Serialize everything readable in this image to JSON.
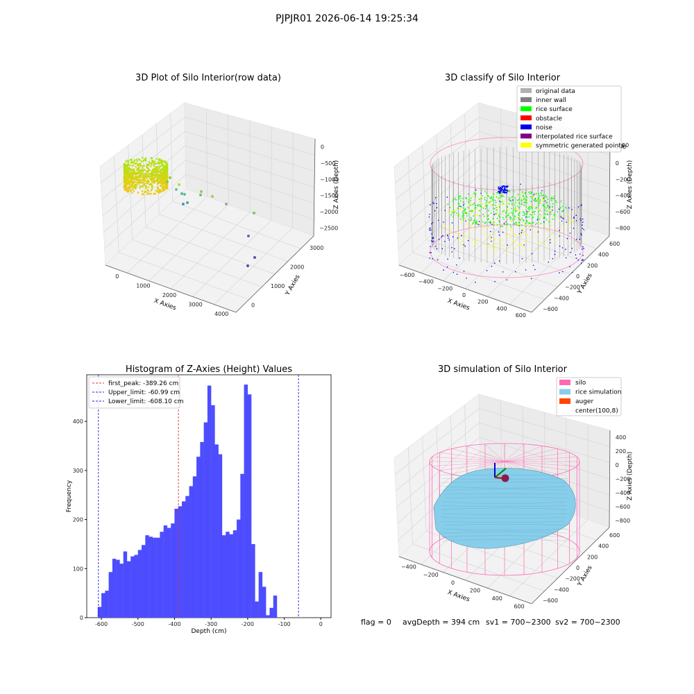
{
  "suptitle": "PJPJR01 2026-06-14 19:25:34",
  "colors": {
    "hist_bar": "#4d4dff",
    "peak_line": "#e03030",
    "limit_line": "#2020cc",
    "silo": "#ff69b4",
    "rice": "#87ceeb",
    "auger": "#ff4500",
    "inner_wall": "#808080",
    "rice_surface": "#00ff00",
    "obstacle": "#ff0000",
    "noise": "#0000ee",
    "interp": "#800080",
    "sym": "#ffff00",
    "original": "#b0b0b0"
  },
  "panel1": {
    "title": "3D Plot of Silo Interior(row data)",
    "x_label": "X Axies",
    "y_label": "Y Axies",
    "z_label": "Z Axies (Depth)",
    "x_ticks": [
      "0",
      "1000",
      "2000",
      "3000",
      "4000"
    ],
    "y_ticks": [
      "0",
      "1000",
      "2000",
      "3000"
    ],
    "z_ticks": [
      "0",
      "−500",
      "−1000",
      "−1500",
      "−2000",
      "−2500"
    ]
  },
  "panel2": {
    "title": "3D classify of Silo Interior",
    "x_label": "X Axies",
    "y_label": "Y Axies",
    "z_label": "Z Axies (Depth)",
    "x_ticks": [
      "−600",
      "−400",
      "−200",
      "0",
      "200",
      "400",
      "600"
    ],
    "y_ticks": [
      "−600",
      "−400",
      "−200",
      "0",
      "200",
      "400",
      "600"
    ],
    "z_ticks": [
      "200",
      "0",
      "−200",
      "−400",
      "−600",
      "−800"
    ],
    "z_top_partial": "00",
    "legend": [
      {
        "label": "original data",
        "color": "#b0b0b0"
      },
      {
        "label": "inner wall",
        "color": "#808080"
      },
      {
        "label": "rice surface",
        "color": "#00ff00"
      },
      {
        "label": "obstacle",
        "color": "#ff0000"
      },
      {
        "label": "noise",
        "color": "#0000ee"
      },
      {
        "label": "interpolated rice surface",
        "color": "#800080"
      },
      {
        "label": "symmetric generated points",
        "color": "#ffff00"
      }
    ]
  },
  "panel4": {
    "title": "3D simulation of Silo Interior",
    "x_label": "X Axies",
    "y_label": "Y Axies",
    "z_label": "Z Axies (Depth)",
    "x_ticks": [
      "−400",
      "−200",
      "0",
      "200",
      "400",
      "600"
    ],
    "y_ticks": [
      "−600",
      "−400",
      "−200",
      "0",
      "200",
      "400",
      "600"
    ],
    "z_ticks": [
      "400",
      "200",
      "0",
      "−200",
      "−400",
      "−600",
      "−800"
    ],
    "legend": [
      {
        "label": "silo",
        "color": "#ff69b4"
      },
      {
        "label": "rice simulation",
        "color": "#87ceeb"
      },
      {
        "label": "auger",
        "color": "#ff4500"
      },
      {
        "label": "center(100,8)",
        "color": ""
      }
    ]
  },
  "bottom_text": {
    "flag": "flag = 0",
    "avg": "avgDepth = 394 cm",
    "sv1": "sv1 = 700~2300",
    "sv2": "sv2 = 700~2300"
  },
  "chart_data": {
    "type": "bar",
    "title": "Histogram of Z-Axies (Height) Values",
    "xlabel": "Depth (cm)",
    "ylabel": "Frequency",
    "xlim": [
      -640,
      28
    ],
    "ylim": [
      0,
      495
    ],
    "x_ticks": [
      -600,
      -500,
      -400,
      -300,
      -200,
      -100,
      0
    ],
    "y_ticks": [
      0,
      100,
      200,
      300,
      400
    ],
    "bin_start": -610,
    "bin_width": 10,
    "values": [
      22,
      50,
      55,
      93,
      120,
      118,
      110,
      135,
      115,
      125,
      128,
      138,
      148,
      168,
      165,
      163,
      163,
      175,
      188,
      183,
      192,
      222,
      227,
      237,
      248,
      268,
      288,
      328,
      358,
      398,
      473,
      433,
      353,
      333,
      168,
      175,
      170,
      178,
      200,
      293,
      475,
      455,
      150,
      33,
      93,
      63,
      5,
      20,
      45
    ],
    "vlines": [
      {
        "label": "first_peak: -389.26 cm",
        "x": -389.26,
        "color": "#e03030"
      },
      {
        "label": "Upper_limit: -60.99 cm",
        "x": -60.99,
        "color": "#2020cc"
      },
      {
        "label": "Lower_limit: -608.10 cm",
        "x": -608.1,
        "color": "#2020cc"
      }
    ]
  }
}
